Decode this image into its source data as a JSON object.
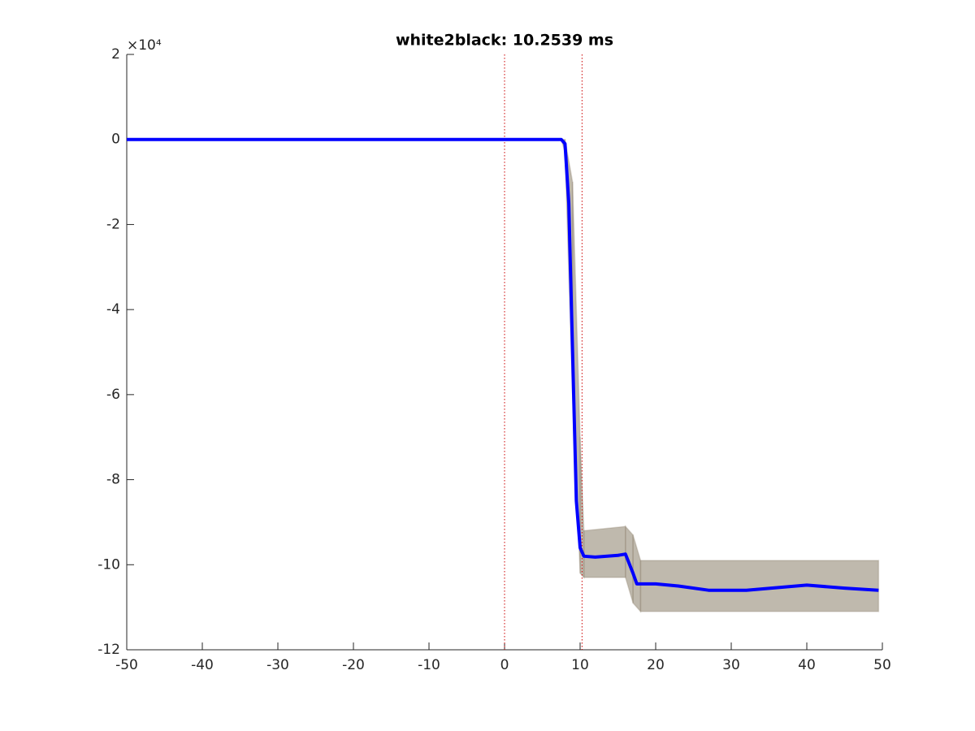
{
  "chart_data": {
    "type": "line",
    "title": "white2black: 10.2539 ms",
    "y_exponent_label": "×10⁴",
    "xlim": [
      -50,
      50
    ],
    "xticks": [
      -50,
      -40,
      -30,
      -20,
      -10,
      0,
      10,
      20,
      30,
      40,
      50
    ],
    "ylim": [
      -12,
      2
    ],
    "yticks": [
      2,
      0,
      -2,
      -4,
      -6,
      -8,
      -10,
      -12
    ],
    "vlines": [
      0,
      10.2539
    ],
    "vline_color": "#cc0000",
    "band": {
      "color": "#8a7f6a",
      "x": [
        -50,
        7.5,
        8,
        9,
        10,
        10.5,
        16,
        17,
        18,
        49.5
      ],
      "upper": [
        0,
        0,
        0,
        -1,
        -7,
        -9.2,
        -9.1,
        -9.3,
        -9.9,
        -9.9
      ],
      "lower": [
        0,
        0,
        -0.3,
        -6,
        -10.2,
        -10.3,
        -10.3,
        -10.9,
        -11.1,
        -11.1
      ]
    },
    "series": [
      {
        "color": "#0000ff",
        "x": [
          -50,
          7.5,
          8,
          8.5,
          9,
          9.5,
          10,
          10.5,
          12,
          15,
          16,
          17,
          17.5,
          20,
          23,
          27,
          32,
          40,
          45,
          49.5
        ],
        "values": [
          0,
          0,
          -0.1,
          -1.5,
          -5,
          -8.5,
          -9.6,
          -9.8,
          -9.82,
          -9.78,
          -9.75,
          -10.2,
          -10.45,
          -10.45,
          -10.5,
          -10.6,
          -10.6,
          -10.48,
          -10.55,
          -10.6
        ]
      }
    ]
  }
}
